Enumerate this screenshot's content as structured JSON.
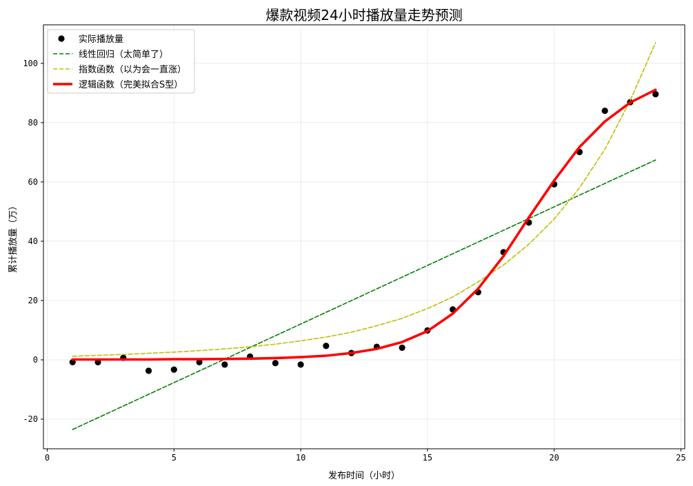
{
  "chart_data": {
    "type": "line",
    "title": "爆款视频24小时播放量走势预测",
    "xlabel": "发布时间（小时）",
    "ylabel": "累计播放量（万）",
    "xlim": [
      -0.15,
      25.15
    ],
    "ylim": [
      -30,
      113
    ],
    "x_ticks": [
      0,
      5,
      10,
      15,
      20,
      25
    ],
    "y_ticks": [
      -20,
      0,
      20,
      40,
      60,
      80,
      100
    ],
    "grid": true,
    "legend_position": "top-left",
    "series": [
      {
        "name": "实际播放量",
        "style": "scatter",
        "color": "#000000",
        "x": [
          1,
          2,
          3,
          4,
          5,
          6,
          7,
          8,
          9,
          10,
          11,
          12,
          13,
          14,
          15,
          16,
          17,
          18,
          19,
          20,
          21,
          22,
          23,
          24
        ],
        "y": [
          -0.8,
          -0.8,
          0.7,
          -3.7,
          -3.3,
          -0.8,
          -1.6,
          1.1,
          -1.1,
          -1.6,
          4.7,
          2.3,
          4.4,
          4.1,
          9.9,
          17,
          22.8,
          36.3,
          46.3,
          59.2,
          70.1,
          84,
          86.9,
          89.6
        ]
      },
      {
        "name": "线性回归（太简单了）",
        "style": "dashed",
        "color": "#008000",
        "x": [
          1,
          24
        ],
        "y": [
          -23.5,
          67.4
        ]
      },
      {
        "name": "指数函数（以为会一直涨）",
        "style": "dashed",
        "color": "#bfbf00",
        "x": [
          1,
          2,
          3,
          4,
          5,
          6,
          7,
          8,
          9,
          10,
          11,
          12,
          13,
          14,
          15,
          16,
          17,
          18,
          19,
          20,
          21,
          22,
          23,
          24
        ],
        "y": [
          1.2,
          1.5,
          1.8,
          2.2,
          2.6,
          3.1,
          3.7,
          4.4,
          5.3,
          6.4,
          7.7,
          9.3,
          11.5,
          14,
          17.3,
          21.2,
          26.3,
          32,
          39,
          47.5,
          58,
          71,
          87.5,
          107
        ]
      },
      {
        "name": "逻辑函数（完美拟合S型）",
        "style": "solid",
        "color": "#ff0000",
        "x": [
          1,
          2,
          3,
          4,
          5,
          6,
          7,
          8,
          9,
          10,
          11,
          12,
          13,
          14,
          15,
          16,
          17,
          18,
          19,
          20,
          21,
          22,
          23,
          24
        ],
        "y": [
          0.1,
          0.1,
          0.1,
          0.1,
          0.2,
          0.2,
          0.3,
          0.4,
          0.6,
          0.9,
          1.4,
          2.3,
          3.7,
          6,
          9.7,
          15.6,
          24,
          35,
          48,
          60.5,
          71.8,
          80.4,
          86.8,
          91.1
        ]
      }
    ]
  }
}
